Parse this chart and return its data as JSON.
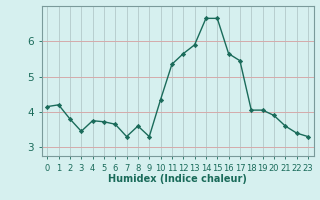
{
  "x": [
    0,
    1,
    2,
    3,
    4,
    5,
    6,
    7,
    8,
    9,
    10,
    11,
    12,
    13,
    14,
    15,
    16,
    17,
    18,
    19,
    20,
    21,
    22,
    23
  ],
  "y": [
    4.15,
    4.2,
    3.8,
    3.45,
    3.75,
    3.72,
    3.65,
    3.3,
    3.6,
    3.3,
    4.35,
    5.35,
    5.65,
    5.9,
    6.65,
    6.65,
    5.65,
    5.45,
    4.05,
    4.05,
    3.9,
    3.6,
    3.4,
    3.3
  ],
  "line_color": "#1a6b5a",
  "marker": "D",
  "marker_size": 2.2,
  "bg_color": "#d6f0ef",
  "hgrid_color": "#d4aaaa",
  "vgrid_color": "#b8cece",
  "xlabel": "Humidex (Indice chaleur)",
  "xlabel_fontsize": 7,
  "tick_fontsize": 6,
  "ylim": [
    2.75,
    7.0
  ],
  "yticks": [
    3,
    4,
    5,
    6
  ],
  "xticks": [
    0,
    1,
    2,
    3,
    4,
    5,
    6,
    7,
    8,
    9,
    10,
    11,
    12,
    13,
    14,
    15,
    16,
    17,
    18,
    19,
    20,
    21,
    22,
    23
  ],
  "line_width": 1.0,
  "text_color": "#1a6b5a",
  "spine_color": "#7a9a9a"
}
